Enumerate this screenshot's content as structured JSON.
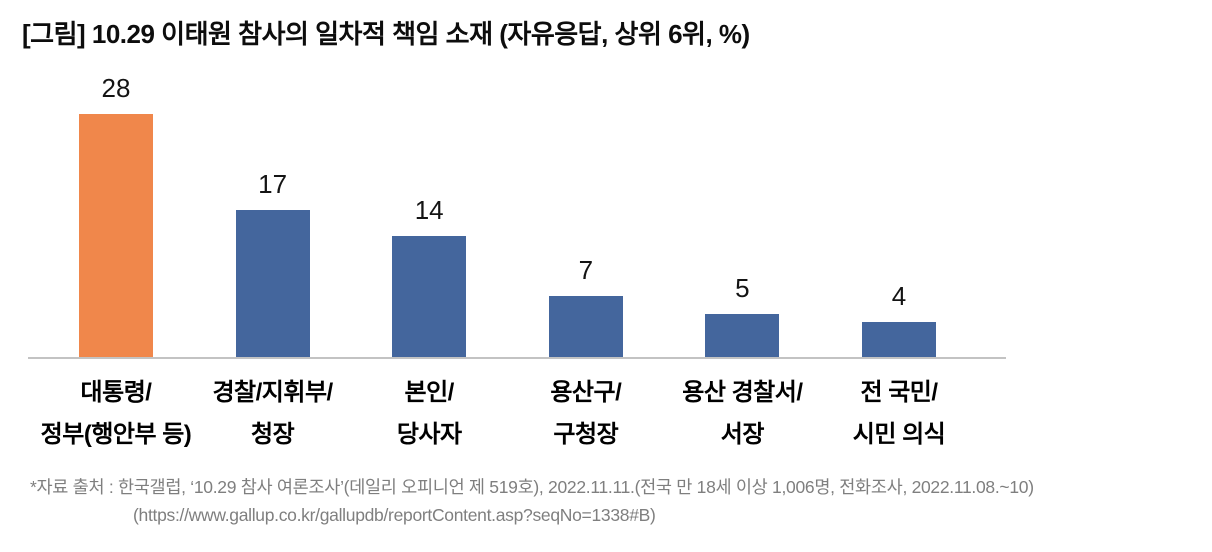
{
  "title": "[그림] 10.29 이태원 참사의 일차적 책임 소재 (자유응답, 상위 6위, %)",
  "footnote": {
    "line1": "*자료 출처 : 한국갤럽, ‘10.29 참사 여론조사’(데일리 오피니언 제 519호), 2022.11.11.(전국 만 18세 이상 1,006명, 전화조사, 2022.11.08.~10)",
    "line2": "(https://www.gallup.co.kr/gallupdb/reportContent.asp?seqNo=1338#B)"
  },
  "chart_data": {
    "type": "bar",
    "title": "[그림] 10.29 이태원 참사의 일차적 책임 소재 (자유응답, 상위 6위, %)",
    "categories": [
      "대통령/\n정부(행안부 등)",
      "경찰/지휘부/\n청장",
      "본인/\n당사자",
      "용산구/\n구청장",
      "용산 경찰서/\n서장",
      "전 국민/\n시민 의식"
    ],
    "values": [
      28,
      17,
      14,
      7,
      5,
      4
    ],
    "unit": "%",
    "xlabel": "",
    "ylabel": "",
    "ylim": [
      0,
      30
    ],
    "grid": false,
    "legend": "none",
    "data_labels": true,
    "highlight_index": 0,
    "colors": {
      "highlight_bar": "#F0874B",
      "default_bar": "#44669D",
      "axis_line": "#C3C3C3",
      "value_label": "#141414",
      "category_label": "#000000",
      "footnote": "#7F7F7F"
    }
  }
}
